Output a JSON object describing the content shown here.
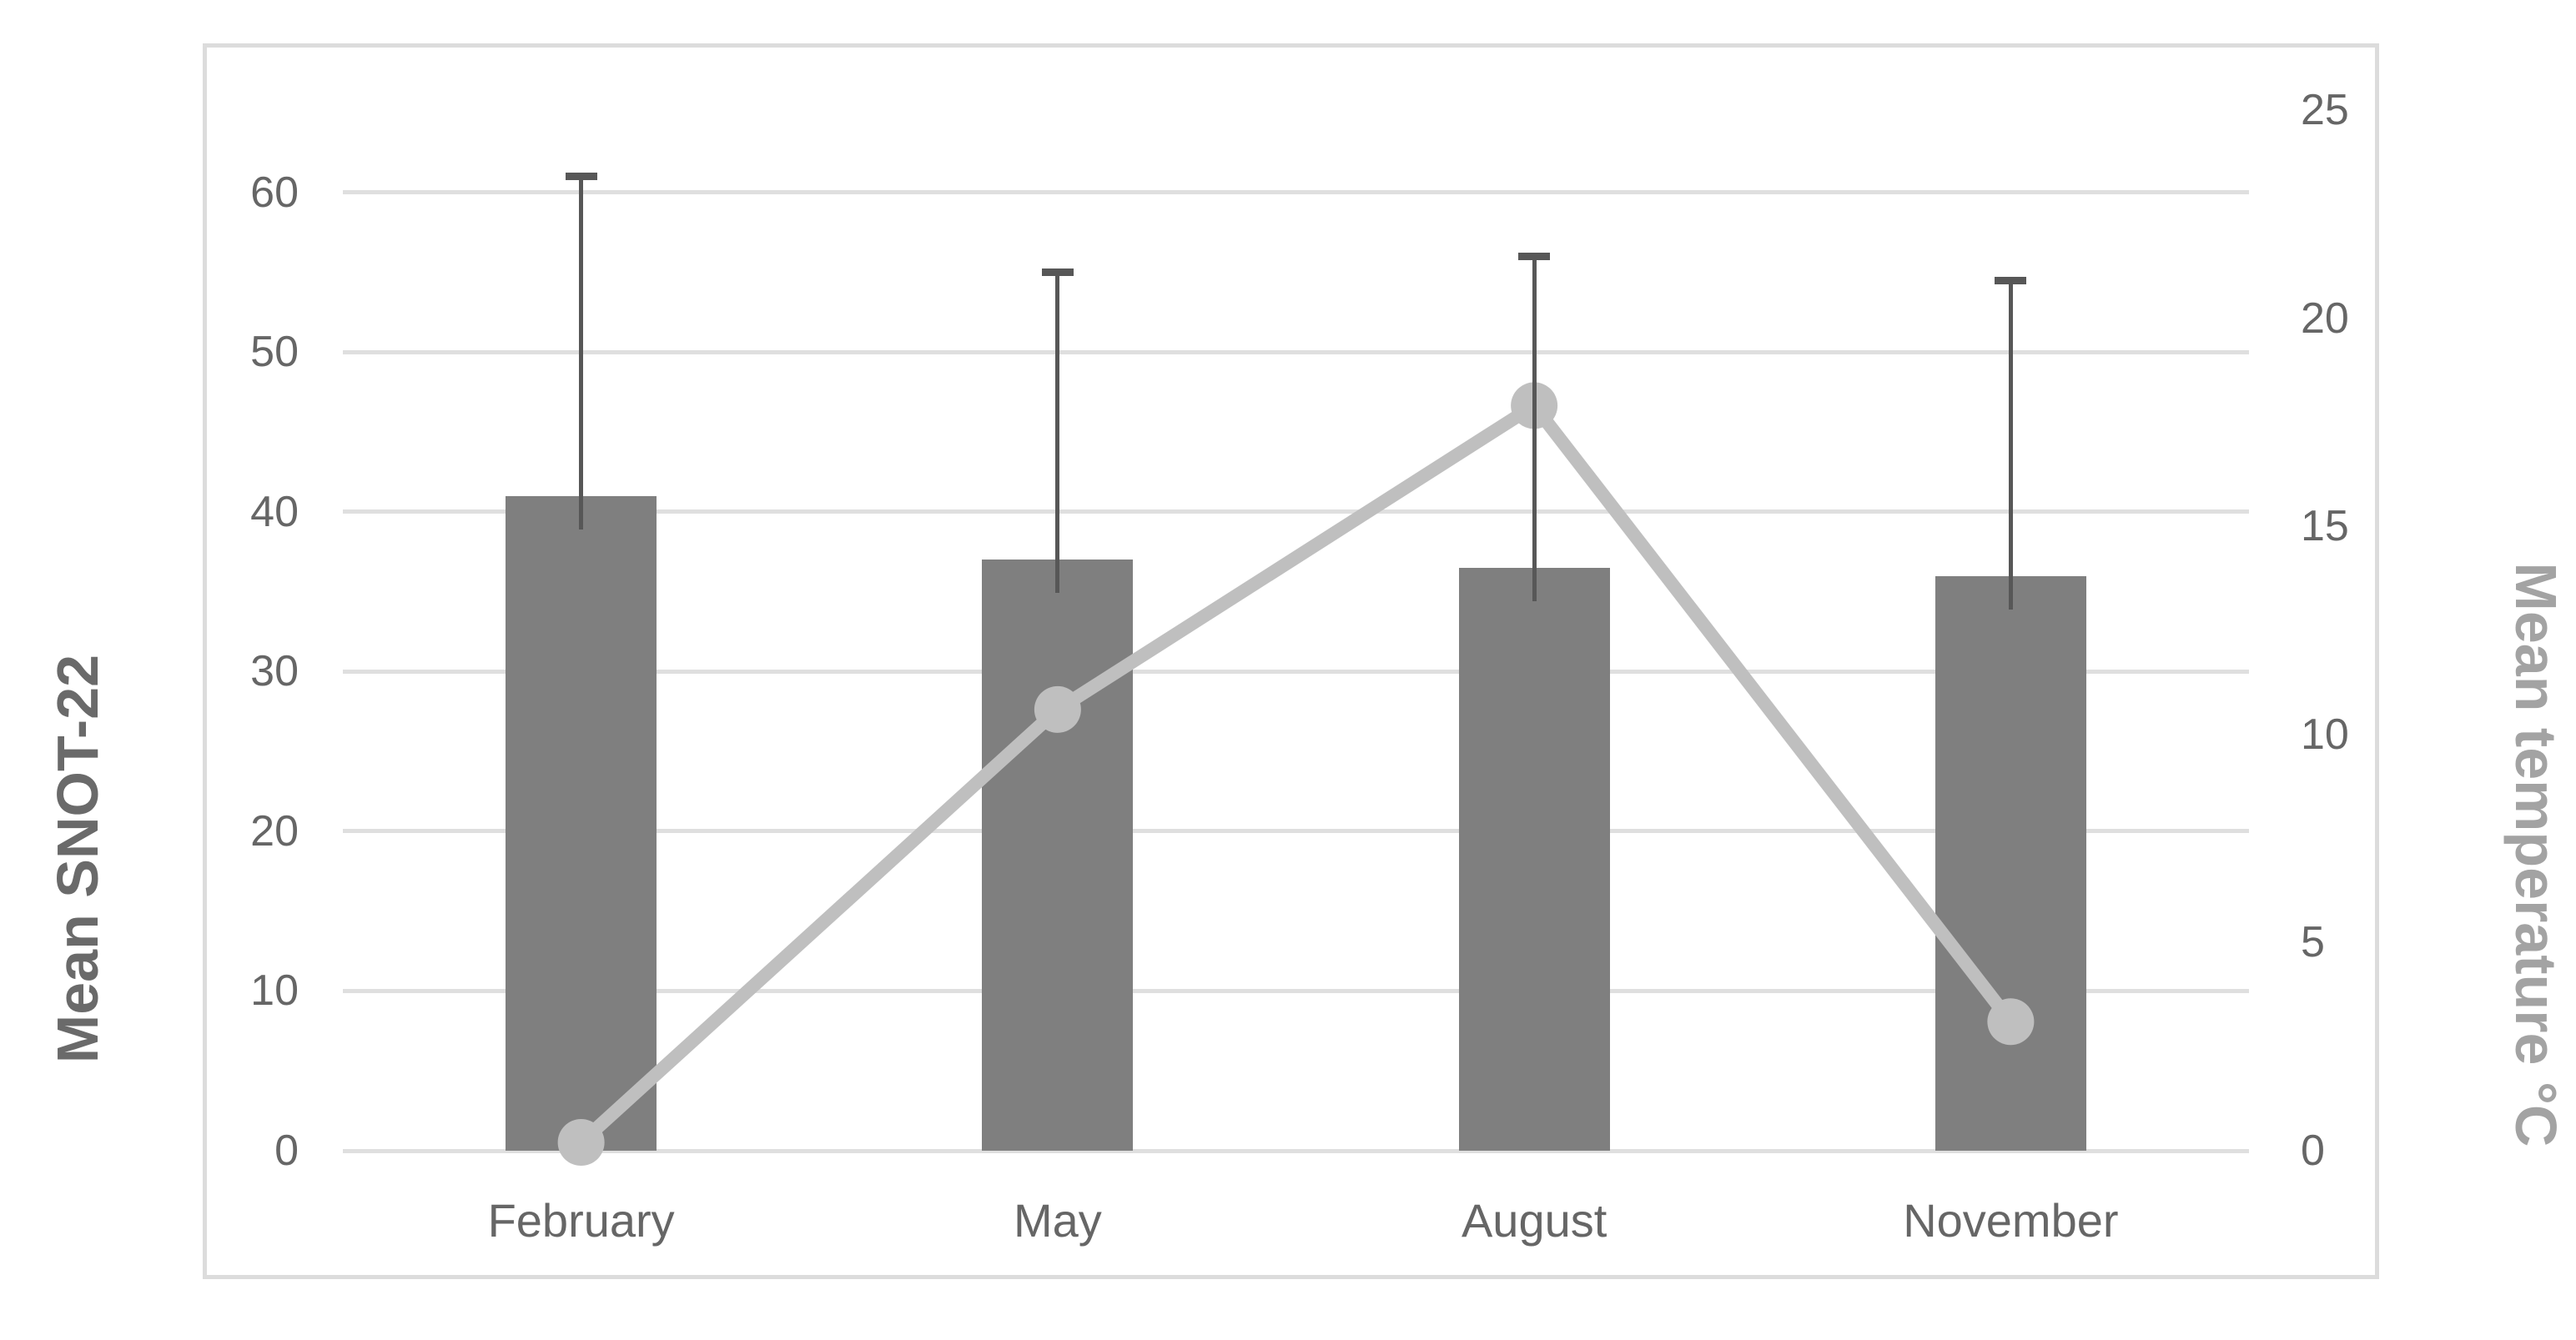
{
  "chart_data": {
    "type": "bar",
    "subtype": "combo-bar-line-dual-axis",
    "title": "",
    "categories": [
      "February",
      "May",
      "August",
      "November"
    ],
    "series": [
      {
        "name": "Mean SNOT-22",
        "type": "bar",
        "axis": "left",
        "values": [
          41,
          37,
          36.5,
          36
        ],
        "error_plus": [
          20,
          18,
          19.5,
          18.5
        ]
      },
      {
        "name": "Mean temperature",
        "type": "line",
        "axis": "right",
        "values": [
          0.2,
          10.6,
          17.9,
          3.1
        ]
      }
    ],
    "left_axis": {
      "title": "Mean SNOT-22",
      "ticks": [
        0,
        10,
        20,
        30,
        40,
        50,
        60
      ],
      "range": [
        0,
        65.2
      ]
    },
    "right_axis": {
      "title": "Mean temperature °C",
      "ticks": [
        0,
        5,
        10,
        15,
        20,
        25
      ],
      "range": [
        0,
        25
      ]
    },
    "grid": true,
    "legend": "none",
    "colors": {
      "bar": "#7f7f7f",
      "line": "#bfbfbf",
      "error_bar": "#575757",
      "gridline": "#dfdfdf",
      "tick_label": "#666666",
      "left_title": "#6a6a6a",
      "right_title": "#a3a3a3",
      "frame_border": "#dcdcdc",
      "background": "#ffffff"
    }
  }
}
